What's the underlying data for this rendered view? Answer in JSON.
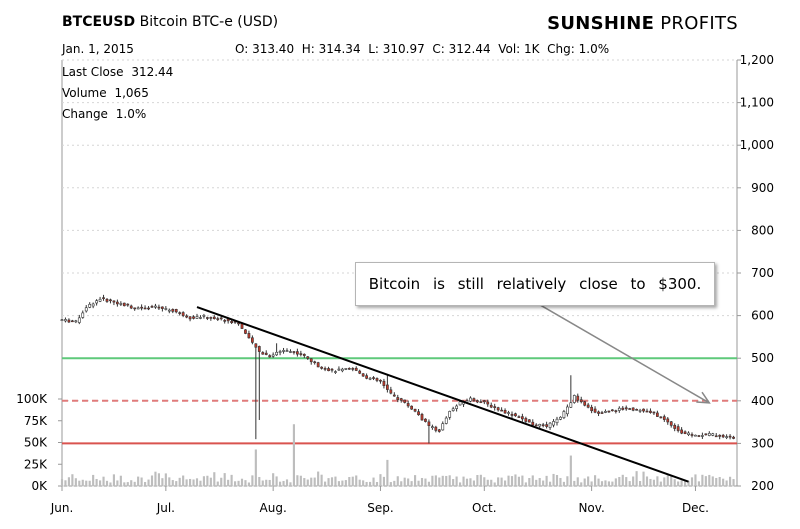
{
  "header": {
    "symbol": "BTCEUSD",
    "description": "Bitcoin BTC-e (USD)",
    "brand_bold": "SUNSHINE",
    "brand_rest": "PROFITS",
    "date": "Jan. 1, 2015",
    "ohlc": "O: 313.40  H: 314.34  L: 310.97  C: 312.44  Vol: 1K  Chg: 1.0%"
  },
  "info": {
    "last_close_label": "Last Close",
    "last_close_value": "312.44",
    "volume_label": "Volume",
    "volume_value": "1,065",
    "change_label": "Change",
    "change_value": "1.0%"
  },
  "annotation": "Bitcoin is still relatively close to $300.",
  "chart_data": {
    "type": "candlestick",
    "price_axis": {
      "range": [
        200,
        1200
      ],
      "ticks": [
        "1,200",
        "1,100",
        "1,000",
        "900",
        "800",
        "700",
        "600",
        "500",
        "400",
        "300",
        "200"
      ]
    },
    "volume_axis": {
      "range": [
        0,
        120000
      ],
      "ticks": [
        "100K",
        "75K",
        "50K",
        "25K",
        "0K"
      ]
    },
    "x_axis": {
      "ticks": [
        "Jun.",
        "Jul.",
        "Aug.",
        "Sep.",
        "Oct.",
        "Nov.",
        "Dec."
      ]
    },
    "horizontal_lines": [
      {
        "value": 500,
        "style": "solid",
        "color": "#5ec97a"
      },
      {
        "value": 400,
        "style": "dashed",
        "color": "#e07b7b"
      },
      {
        "value": 300,
        "style": "solid",
        "color": "#d9534f"
      }
    ],
    "trendline": {
      "from": [
        "Jul. 10",
        620
      ],
      "to": [
        "Nov. 29",
        210
      ]
    },
    "arrow": {
      "from": [
        "Oct. 15",
        635
      ],
      "to": [
        "Dec. 5",
        395
      ]
    },
    "up_color": "#ffffff",
    "down_color": "#c0392b",
    "price_path": [
      [
        "Jun. 1",
        590
      ],
      [
        "Jun. 5",
        585
      ],
      [
        "Jun. 8",
        620
      ],
      [
        "Jun. 12",
        640
      ],
      [
        "Jun. 16",
        632
      ],
      [
        "Jun. 22",
        618
      ],
      [
        "Jun. 28",
        620
      ],
      [
        "Jul. 3",
        612
      ],
      [
        "Jul. 8",
        595
      ],
      [
        "Jul. 12",
        598
      ],
      [
        "Jul. 18",
        590
      ],
      [
        "Jul. 22",
        582
      ],
      [
        "Jul. 25",
        545
      ],
      [
        "Jul. 28",
        515
      ],
      [
        "Jul. 31",
        505
      ],
      [
        "Aug. 4",
        520
      ],
      [
        "Aug. 9",
        510
      ],
      [
        "Aug. 14",
        482
      ],
      [
        "Aug. 18",
        470
      ],
      [
        "Aug. 24",
        475
      ],
      [
        "Aug. 28",
        455
      ],
      [
        "Sep. 1",
        445
      ],
      [
        "Sep. 4",
        415
      ],
      [
        "Sep. 8",
        395
      ],
      [
        "Sep. 11",
        375
      ],
      [
        "Sep. 15",
        340
      ],
      [
        "Sep. 18",
        330
      ],
      [
        "Sep. 21",
        375
      ],
      [
        "Sep. 24",
        395
      ],
      [
        "Sep. 27",
        405
      ],
      [
        "Oct. 1",
        395
      ],
      [
        "Oct. 5",
        380
      ],
      [
        "Oct. 10",
        365
      ],
      [
        "Oct. 15",
        345
      ],
      [
        "Oct. 19",
        340
      ],
      [
        "Oct. 23",
        360
      ],
      [
        "Oct. 25",
        385
      ],
      [
        "Oct. 27",
        410
      ],
      [
        "Oct. 30",
        388
      ],
      [
        "Nov. 3",
        370
      ],
      [
        "Nov. 7",
        378
      ],
      [
        "Nov. 11",
        382
      ],
      [
        "Nov. 15",
        378
      ],
      [
        "Nov. 19",
        370
      ],
      [
        "Nov. 23",
        350
      ],
      [
        "Nov. 27",
        325
      ],
      [
        "Dec. 1",
        318
      ],
      [
        "Dec. 5",
        322
      ],
      [
        "Dec. 10",
        315
      ],
      [
        "Dec. 12",
        312
      ]
    ],
    "spike_lows": [
      [
        "Jul. 27",
        310
      ],
      [
        "Jul. 28",
        355
      ],
      [
        "Sep. 15",
        300
      ]
    ],
    "spike_highs": [
      [
        "Aug. 2",
        535
      ],
      [
        "Sep. 3",
        460
      ],
      [
        "Oct. 26",
        460
      ]
    ],
    "volume_spikes": [
      [
        "Jul. 27",
        42000
      ],
      [
        "Aug. 7",
        71000
      ],
      [
        "Oct. 26",
        35000
      ],
      [
        "Sep. 3",
        30000
      ]
    ]
  }
}
